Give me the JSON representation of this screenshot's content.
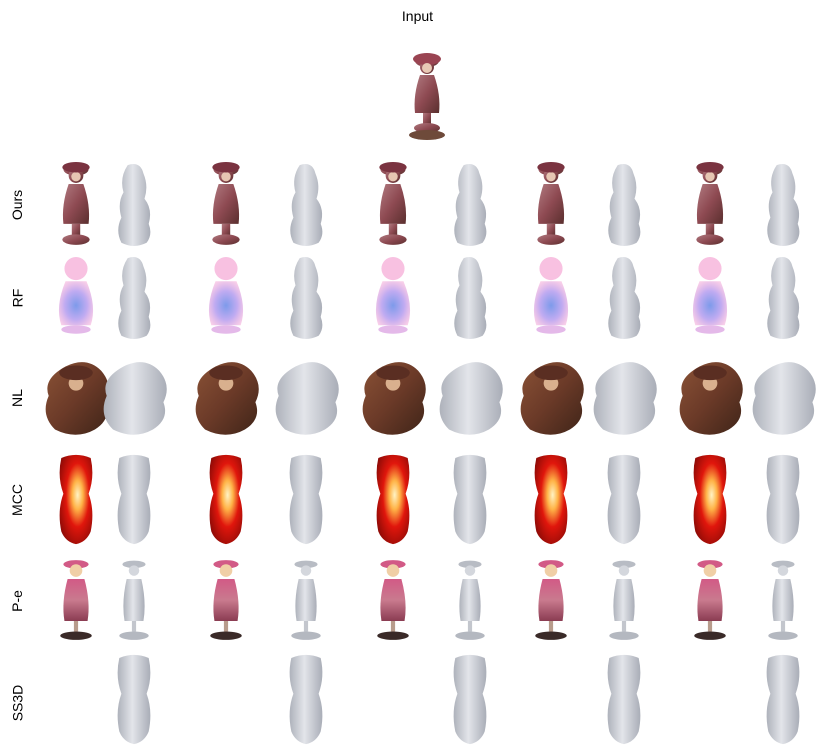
{
  "figure": {
    "input_label": "Input",
    "rows": [
      {
        "label": "Ours"
      },
      {
        "label": "RF"
      },
      {
        "label": "NL"
      },
      {
        "label": "MCC"
      },
      {
        "label": "P-e"
      },
      {
        "label": "SS3D"
      }
    ]
  },
  "colors": {
    "mesh": "#c9ccd3",
    "ours_dress": "#8e4a52",
    "rf_pink": "#f3a6d6",
    "rf_blue": "#6f8fe8",
    "nl_brown": "#6b3a28",
    "mcc_red": "#e0160c",
    "mcc_glow": "#ffe08a",
    "pe_pink": "#d25a86",
    "pe_base": "#3a2a28"
  }
}
